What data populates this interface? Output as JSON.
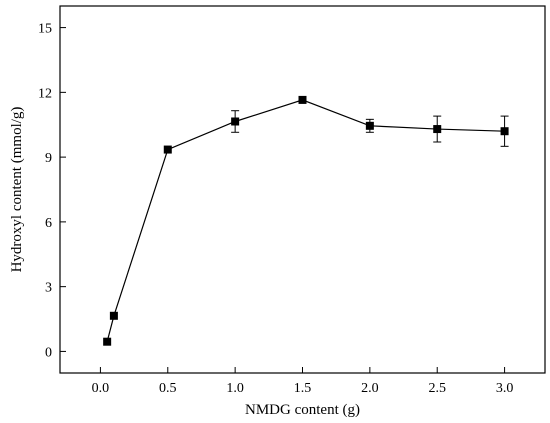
{
  "chart_data": {
    "type": "line",
    "title": "",
    "xlabel": "NMDG content (g)",
    "ylabel": "Hydroxyl content (mmol/g)",
    "xlim": [
      -0.3,
      3.3
    ],
    "ylim": [
      -1,
      16
    ],
    "x_ticks": [
      0.0,
      0.5,
      1.0,
      1.5,
      2.0,
      2.5,
      3.0
    ],
    "x_tick_labels": [
      "0.0",
      "0.5",
      "1.0",
      "1.5",
      "2.0",
      "2.5",
      "3.0"
    ],
    "y_ticks": [
      0,
      3,
      6,
      9,
      12,
      15
    ],
    "y_tick_labels": [
      "0",
      "3",
      "6",
      "9",
      "12",
      "15"
    ],
    "grid": false,
    "marker": "square",
    "color": "#000000",
    "series": [
      {
        "x": [
          0.05,
          0.1,
          0.5,
          1.0,
          1.5,
          2.0,
          2.5,
          3.0
        ],
        "y": [
          0.45,
          1.65,
          9.35,
          10.65,
          11.65,
          10.45,
          10.3,
          10.2
        ],
        "error": [
          0.1,
          0.1,
          0.1,
          0.5,
          0.1,
          0.3,
          0.6,
          0.7
        ]
      }
    ]
  }
}
